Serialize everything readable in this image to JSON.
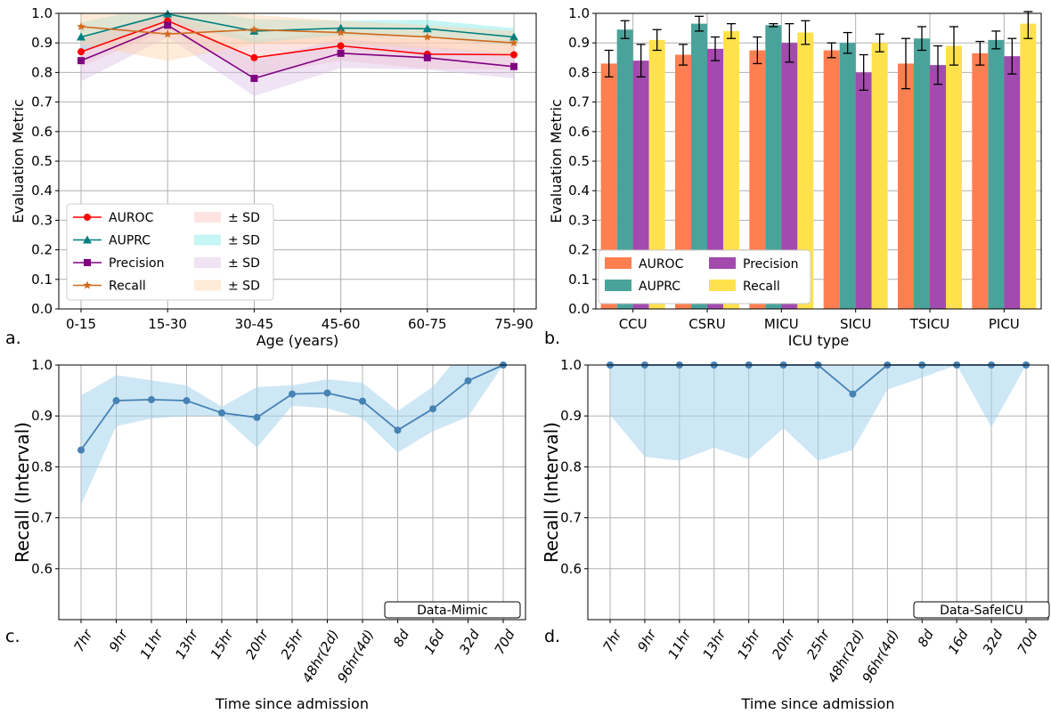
{
  "colors": {
    "auroc": "#ff0000",
    "auprc": "#008080",
    "precision": "#800080",
    "recall": "#d2691e",
    "bar_auroc": "#ff7f50",
    "bar_auprc": "#4aa39a",
    "bar_precision": "#a24aae",
    "bar_recall": "#ffe14d",
    "recall_line": "#4682b4",
    "recall_band": "#a6d4ec"
  },
  "panels": {
    "a": {
      "letter": "a."
    },
    "b": {
      "letter": "b."
    },
    "c": {
      "letter": "c."
    },
    "d": {
      "letter": "d."
    }
  },
  "chart_data": [
    {
      "id": "a",
      "type": "line",
      "xlabel": "Age (years)",
      "ylabel": "Evaluation Metric",
      "ylim": [
        0.0,
        1.0
      ],
      "yticks": [
        "0.0",
        "0.1",
        "0.2",
        "0.3",
        "0.4",
        "0.5",
        "0.6",
        "0.7",
        "0.8",
        "0.9",
        "1.0"
      ],
      "categories": [
        "0-15",
        "15-30",
        "30-45",
        "45-60",
        "60-75",
        "75-90"
      ],
      "grid": true,
      "legend_position": "lower-left",
      "series": [
        {
          "name": "AUROC",
          "marker": "circle",
          "color": "#ff0000",
          "values": [
            0.87,
            0.975,
            0.85,
            0.89,
            0.862,
            0.86
          ],
          "sd": [
            0.05,
            0.03,
            0.06,
            0.05,
            0.05,
            0.05
          ]
        },
        {
          "name": "AUPRC",
          "marker": "triangle",
          "color": "#008080",
          "values": [
            0.92,
            0.998,
            0.94,
            0.95,
            0.948,
            0.92
          ],
          "sd": [
            0.05,
            0.03,
            0.04,
            0.025,
            0.03,
            0.03
          ]
        },
        {
          "name": "Precision",
          "marker": "square",
          "color": "#800080",
          "values": [
            0.84,
            0.96,
            0.78,
            0.865,
            0.85,
            0.82
          ],
          "sd": [
            0.07,
            0.04,
            0.06,
            0.05,
            0.04,
            0.04
          ]
        },
        {
          "name": "Recall",
          "marker": "star",
          "color": "#d2691e",
          "values": [
            0.955,
            0.93,
            0.945,
            0.935,
            0.92,
            0.9
          ],
          "sd": [
            0.06,
            0.09,
            0.05,
            0.04,
            0.04,
            0.04
          ]
        }
      ],
      "band_label": "± SD"
    },
    {
      "id": "b",
      "type": "bar",
      "xlabel": "ICU type",
      "ylabel": "Evaluation Metric",
      "ylim": [
        0.0,
        1.0
      ],
      "yticks": [
        "0.0",
        "0.1",
        "0.2",
        "0.3",
        "0.4",
        "0.5",
        "0.6",
        "0.7",
        "0.8",
        "0.9",
        "1.0"
      ],
      "categories": [
        "CCU",
        "CSRU",
        "MICU",
        "SICU",
        "TSICU",
        "PICU"
      ],
      "grid": true,
      "legend_position": "lower-left",
      "series": [
        {
          "name": "AUROC",
          "color": "#ff7f50",
          "values": [
            0.83,
            0.86,
            0.875,
            0.875,
            0.83,
            0.865
          ],
          "err": [
            0.045,
            0.035,
            0.045,
            0.025,
            0.085,
            0.04
          ]
        },
        {
          "name": "AUPRC",
          "color": "#4aa39a",
          "values": [
            0.945,
            0.965,
            0.96,
            0.9,
            0.915,
            0.91
          ],
          "err": [
            0.03,
            0.025,
            0.005,
            0.035,
            0.04,
            0.03
          ]
        },
        {
          "name": "Precision",
          "color": "#a24aae",
          "values": [
            0.84,
            0.88,
            0.9,
            0.8,
            0.825,
            0.855
          ],
          "err": [
            0.055,
            0.04,
            0.065,
            0.06,
            0.065,
            0.06
          ]
        },
        {
          "name": "Recall",
          "color": "#ffe14d",
          "values": [
            0.91,
            0.94,
            0.935,
            0.9,
            0.89,
            0.965
          ],
          "err": [
            0.035,
            0.025,
            0.04,
            0.03,
            0.065,
            0.05
          ]
        }
      ]
    },
    {
      "id": "c",
      "type": "line",
      "xlabel": "Time since admission",
      "ylabel": "Recall (Interval)",
      "ylim": [
        0.5,
        1.0
      ],
      "yticks": [
        "0.6",
        "0.7",
        "0.8",
        "0.9",
        "1.0"
      ],
      "categories": [
        "7hr",
        "9hr",
        "11hr",
        "13hr",
        "15hr",
        "20hr",
        "25hr",
        "48hr(2d)",
        "96hr(4d)",
        "8d",
        "16d",
        "32d",
        "70d"
      ],
      "grid": true,
      "dataset_label": "Data-Mimic",
      "series": [
        {
          "name": "Recall",
          "values": [
            0.833,
            0.93,
            0.932,
            0.93,
            0.906,
            0.897,
            0.943,
            0.945,
            0.929,
            0.872,
            0.914,
            0.969,
            1.0
          ],
          "lower": [
            0.725,
            0.88,
            0.895,
            0.9,
            0.9,
            0.838,
            0.92,
            0.915,
            0.895,
            0.828,
            0.87,
            0.898,
            1.0
          ],
          "upper": [
            0.94,
            0.98,
            0.97,
            0.96,
            0.918,
            0.957,
            0.96,
            0.972,
            0.965,
            0.91,
            0.957,
            1.04,
            1.04
          ]
        }
      ]
    },
    {
      "id": "d",
      "type": "line",
      "xlabel": "Time since admission",
      "ylabel": "Recall (Interval)",
      "ylim": [
        0.5,
        1.0
      ],
      "yticks": [
        "0.6",
        "0.7",
        "0.8",
        "0.9",
        "1.0"
      ],
      "categories": [
        "7hr",
        "9hr",
        "11hr",
        "13hr",
        "15hr",
        "20hr",
        "25hr",
        "48hr(2d)",
        "96hr(4d)",
        "8d",
        "16d",
        "32d",
        "70d"
      ],
      "grid": true,
      "dataset_label": "Data-SafeICU",
      "series": [
        {
          "name": "Recall",
          "values": [
            1.0,
            1.0,
            1.0,
            1.0,
            1.0,
            1.0,
            1.0,
            0.943,
            1.0,
            1.0,
            1.0,
            1.0,
            1.0
          ],
          "lower": [
            0.902,
            0.82,
            0.812,
            0.838,
            0.815,
            0.876,
            0.812,
            0.833,
            0.952,
            0.975,
            1.0,
            0.878,
            1.0
          ],
          "upper": [
            1.0,
            1.0,
            1.0,
            1.0,
            1.0,
            1.0,
            1.0,
            1.0,
            1.0,
            1.0,
            1.0,
            1.0,
            1.0
          ]
        }
      ]
    }
  ]
}
